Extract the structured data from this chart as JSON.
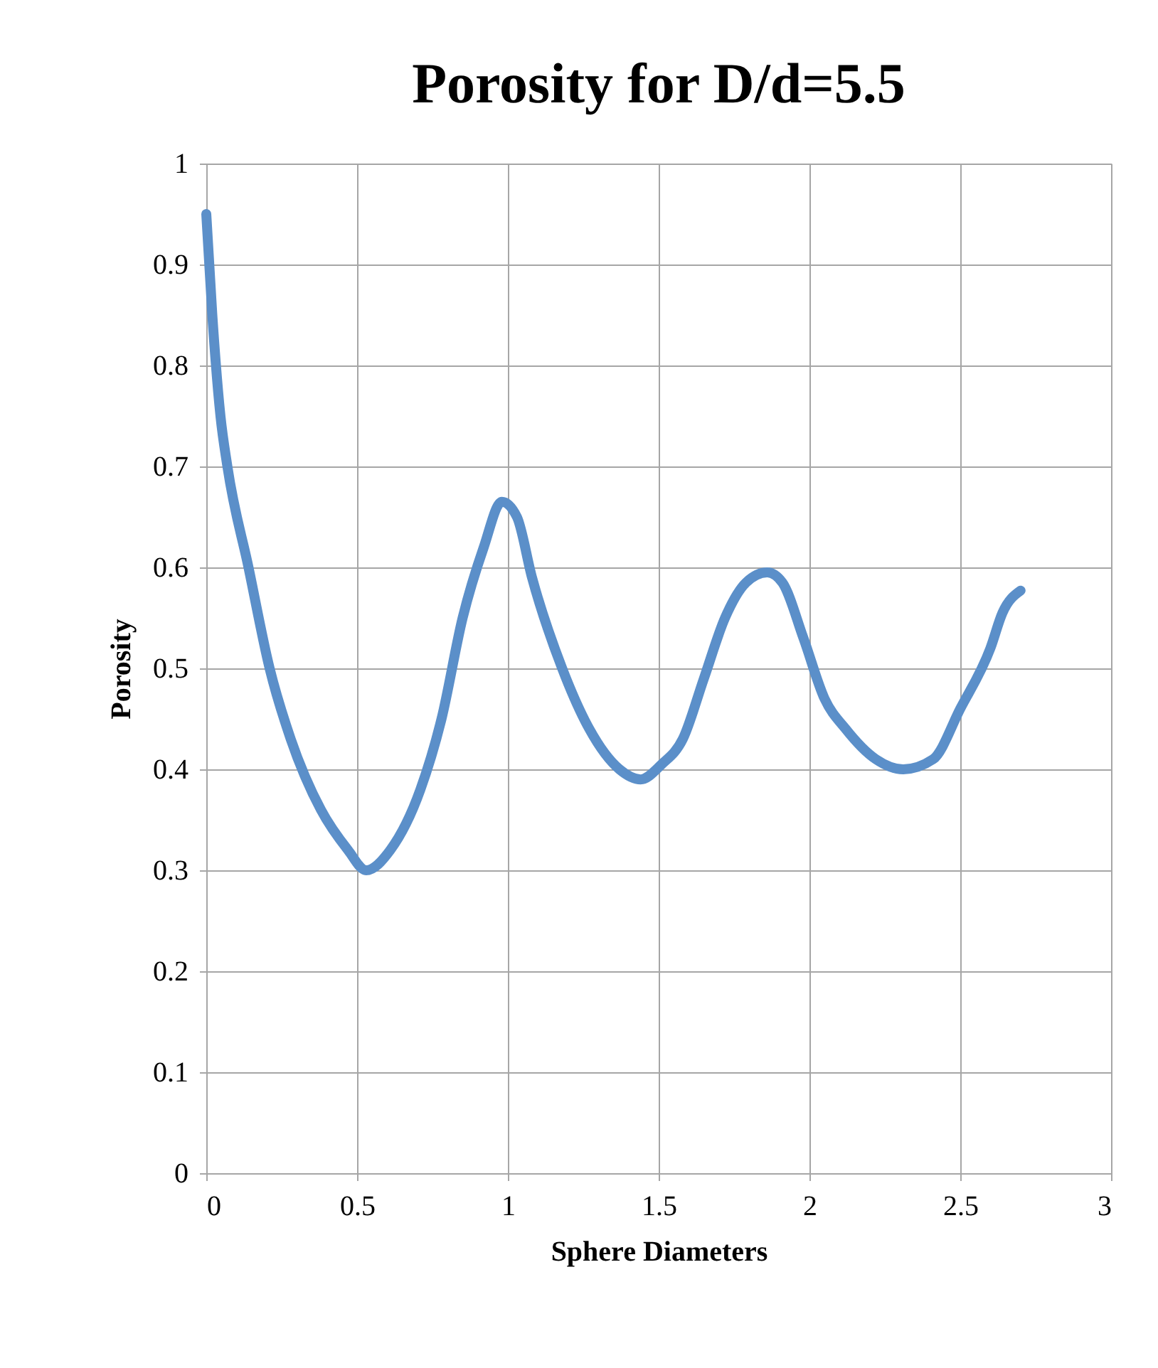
{
  "chart_data": {
    "type": "line",
    "title": "Porosity for D/d=5.5",
    "xlabel": "Sphere Diameters",
    "ylabel": "Porosity",
    "xlim": [
      0,
      3
    ],
    "xticks": [
      0,
      0.5,
      1,
      1.5,
      2,
      2.5,
      3
    ],
    "ylim": [
      0,
      1
    ],
    "yticks": [
      0,
      0.1,
      0.2,
      0.3,
      0.4,
      0.5,
      0.6,
      0.7,
      0.8,
      0.9,
      1
    ],
    "grid": true,
    "line_style": "solid",
    "series": [
      {
        "color": "#5b8fc9",
        "x": [
          0,
          0.02,
          0.047,
          0.07,
          0.14,
          0.21,
          0.28,
          0.38,
          0.47,
          0.53,
          0.61,
          0.71,
          0.78,
          0.85,
          0.92,
          0.98,
          1.03,
          1.08,
          1.18,
          1.27,
          1.37,
          1.44,
          1.51,
          1.58,
          1.65,
          1.72,
          1.79,
          1.86,
          1.91,
          1.98,
          2.05,
          2.12,
          2.22,
          2.31,
          2.41,
          2.5,
          2.6,
          2.64,
          2.7
        ],
        "values": [
          0.95,
          0.85,
          0.75,
          0.7,
          0.6,
          0.5,
          0.43,
          0.36,
          0.32,
          0.3,
          0.32,
          0.38,
          0.45,
          0.55,
          0.62,
          0.665,
          0.65,
          0.59,
          0.5,
          0.44,
          0.4,
          0.39,
          0.405,
          0.43,
          0.49,
          0.55,
          0.585,
          0.595,
          0.585,
          0.53,
          0.47,
          0.44,
          0.41,
          0.4,
          0.41,
          0.46,
          0.52,
          0.555,
          0.577
        ]
      }
    ]
  }
}
